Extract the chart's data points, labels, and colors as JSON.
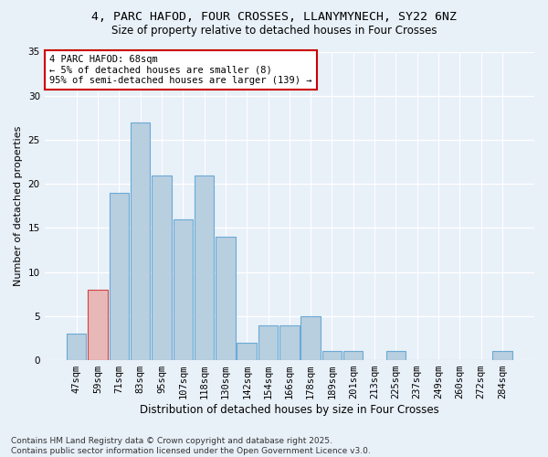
{
  "title1": "4, PARC HAFOD, FOUR CROSSES, LLANYMYNECH, SY22 6NZ",
  "title2": "Size of property relative to detached houses in Four Crosses",
  "xlabel": "Distribution of detached houses by size in Four Crosses",
  "ylabel": "Number of detached properties",
  "categories": [
    "47sqm",
    "59sqm",
    "71sqm",
    "83sqm",
    "95sqm",
    "107sqm",
    "118sqm",
    "130sqm",
    "142sqm",
    "154sqm",
    "166sqm",
    "178sqm",
    "189sqm",
    "201sqm",
    "213sqm",
    "225sqm",
    "237sqm",
    "249sqm",
    "260sqm",
    "272sqm",
    "284sqm"
  ],
  "values": [
    3,
    8,
    19,
    27,
    21,
    16,
    21,
    14,
    2,
    4,
    4,
    5,
    1,
    1,
    0,
    1,
    0,
    0,
    0,
    0,
    1
  ],
  "bar_color": "#b8cfe0",
  "bar_edge_color": "#6aaad4",
  "highlight_index": 1,
  "highlight_bar_color": "#e8b8b8",
  "highlight_bar_edge": "#cc4444",
  "bg_color": "#e8f0f8",
  "grid_color": "#ffffff",
  "annotation_text": "4 PARC HAFOD: 68sqm\n← 5% of detached houses are smaller (8)\n95% of semi-detached houses are larger (139) →",
  "annotation_box_color": "#ffffff",
  "annotation_box_edge": "#cc0000",
  "footer": "Contains HM Land Registry data © Crown copyright and database right 2025.\nContains public sector information licensed under the Open Government Licence v3.0.",
  "ylim": [
    0,
    35
  ],
  "yticks": [
    0,
    5,
    10,
    15,
    20,
    25,
    30,
    35
  ],
  "property_bar_index": 1,
  "title1_fontsize": 9.5,
  "title2_fontsize": 8.5,
  "xlabel_fontsize": 8.5,
  "ylabel_fontsize": 8.0,
  "tick_fontsize": 7.5,
  "footer_fontsize": 6.5
}
